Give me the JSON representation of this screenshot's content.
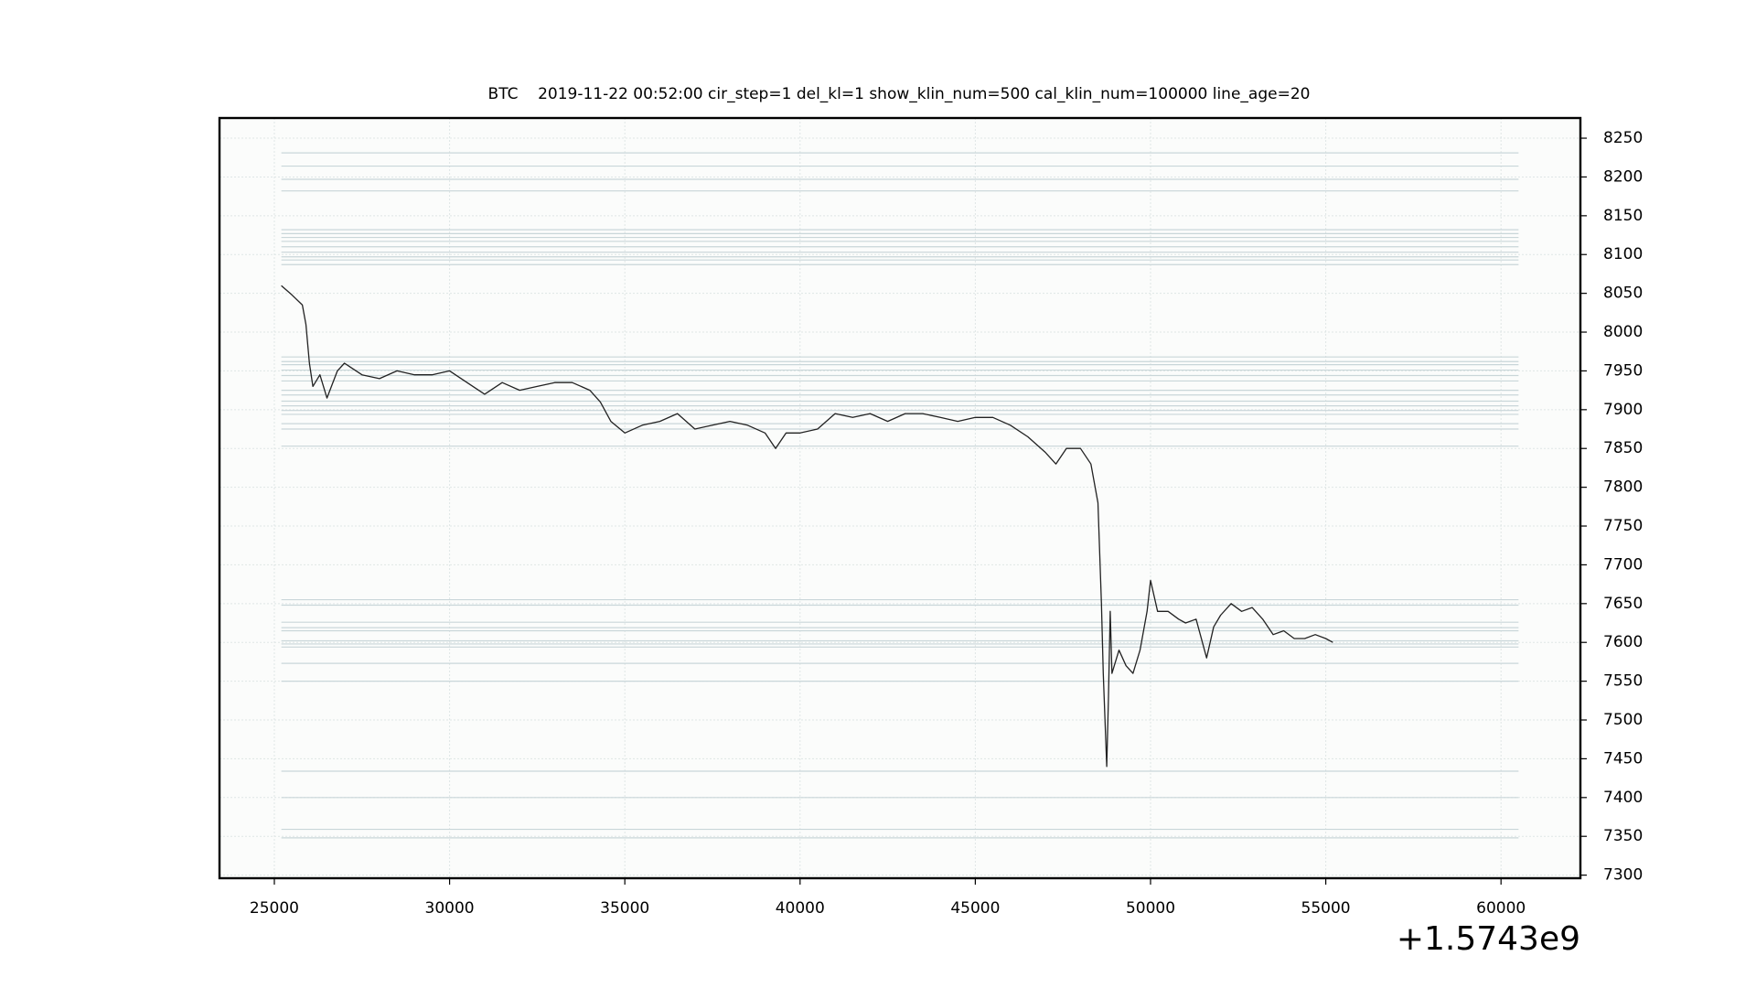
{
  "chart_data": {
    "type": "line",
    "title": "BTC    2019-11-22 00:52:00 cir_step=1 del_kl=1 show_klin_num=500 cal_klin_num=100000 line_age=20",
    "x_offset_label": "+1.5743e9",
    "color": "#222222",
    "level_color": "#c9d6d9",
    "grid": true,
    "xlim": [
      23435,
      62265
    ],
    "ylim": [
      7296,
      8276
    ],
    "xticks": [
      25000,
      30000,
      35000,
      40000,
      45000,
      50000,
      55000,
      60000
    ],
    "yticks": [
      7300,
      7350,
      7400,
      7450,
      7500,
      7550,
      7600,
      7650,
      7700,
      7750,
      7800,
      7850,
      7900,
      7950,
      8000,
      8050,
      8100,
      8150,
      8200,
      8250
    ],
    "x": [
      25200,
      25500,
      25800,
      25900,
      26000,
      26100,
      26300,
      26500,
      26800,
      27000,
      27500,
      28000,
      28500,
      29000,
      29500,
      30000,
      30500,
      31000,
      31500,
      32000,
      32500,
      33000,
      33500,
      34000,
      34300,
      34600,
      35000,
      35500,
      36000,
      36500,
      37000,
      37500,
      38000,
      38500,
      39000,
      39300,
      39600,
      40000,
      40500,
      41000,
      41500,
      42000,
      42500,
      43000,
      43500,
      44000,
      44500,
      45000,
      45500,
      46000,
      46500,
      47000,
      47300,
      47600,
      48000,
      48300,
      48500,
      48600,
      48650,
      48700,
      48750,
      48800,
      48850,
      48900,
      49100,
      49300,
      49500,
      49700,
      49900,
      50000,
      50200,
      50500,
      50800,
      51000,
      51300,
      51600,
      51800,
      52000,
      52300,
      52600,
      52900,
      53200,
      53500,
      53800,
      54100,
      54400,
      54700,
      55000,
      55200
    ],
    "values": [
      8060,
      8048,
      8035,
      8010,
      7960,
      7930,
      7945,
      7915,
      7950,
      7960,
      7945,
      7940,
      7950,
      7945,
      7945,
      7950,
      7935,
      7920,
      7935,
      7925,
      7930,
      7935,
      7935,
      7925,
      7910,
      7885,
      7870,
      7880,
      7885,
      7895,
      7875,
      7880,
      7885,
      7880,
      7870,
      7850,
      7870,
      7870,
      7875,
      7895,
      7890,
      7895,
      7885,
      7895,
      7895,
      7890,
      7885,
      7890,
      7890,
      7880,
      7865,
      7845,
      7830,
      7850,
      7850,
      7830,
      7780,
      7650,
      7560,
      7500,
      7440,
      7530,
      7640,
      7560,
      7590,
      7570,
      7560,
      7590,
      7640,
      7680,
      7640,
      7640,
      7630,
      7625,
      7630,
      7580,
      7620,
      7635,
      7650,
      7640,
      7645,
      7630,
      7610,
      7615,
      7605,
      7605,
      7610,
      7605,
      7600
    ],
    "level_x": [
      25200,
      60500
    ],
    "levels": [
      8231,
      8214,
      8197,
      8182,
      8132,
      8127,
      8122,
      8117,
      8110,
      8103,
      8097,
      8093,
      8087,
      7968,
      7962,
      7958,
      7951,
      7944,
      7937,
      7925,
      7919,
      7911,
      7905,
      7899,
      7894,
      7882,
      7875,
      7853,
      7655,
      7648,
      7626,
      7619,
      7615,
      7602,
      7598,
      7594,
      7573,
      7550,
      7434,
      7400,
      7359,
      7348
    ]
  }
}
